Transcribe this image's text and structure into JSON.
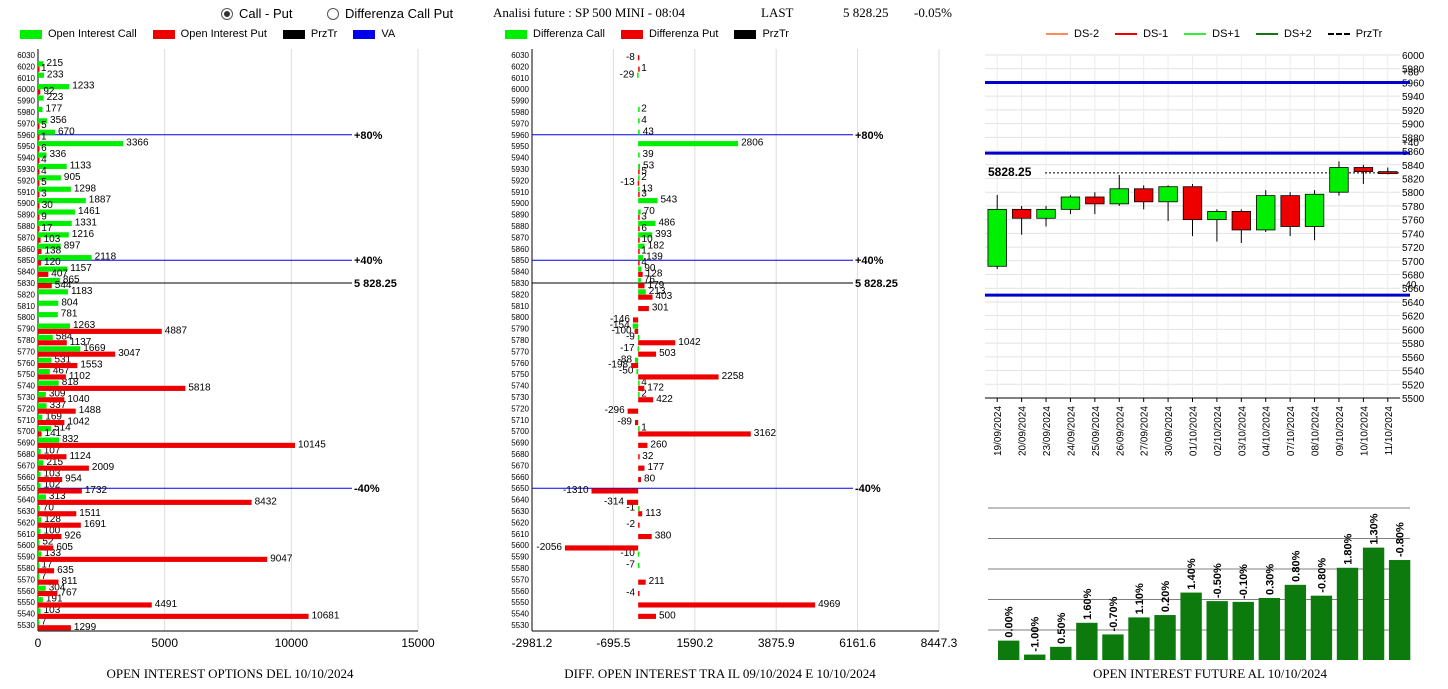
{
  "header": {
    "radio_call_put": "Call - Put",
    "radio_diff": "Differenza Call Put",
    "analysis": "Analisi future : SP 500 MINI - 08:04",
    "last_label": "LAST",
    "last_value": "5 828.25",
    "change": "-0.05%"
  },
  "legend1": [
    {
      "label": "Open Interest Call",
      "color": "#00ee00"
    },
    {
      "label": "Open Interest Put",
      "color": "#ee0000"
    },
    {
      "label": "PrzTr",
      "color": "#000000"
    },
    {
      "label": "VA",
      "color": "#0000ee"
    }
  ],
  "legend2": [
    {
      "label": "Differenza Call",
      "color": "#00ee00"
    },
    {
      "label": "Differenza Put",
      "color": "#ee0000"
    },
    {
      "label": "PrzTr",
      "color": "#000000"
    }
  ],
  "legend3": [
    {
      "label": "DS-2",
      "color": "#ff8c5a",
      "style": "solid"
    },
    {
      "label": "DS-1",
      "color": "#ee0000",
      "style": "solid"
    },
    {
      "label": "DS+1",
      "color": "#33ee33",
      "style": "solid"
    },
    {
      "label": "DS+2",
      "color": "#117711",
      "style": "solid"
    },
    {
      "label": "PrzTr",
      "color": "#000000",
      "style": "dashed"
    }
  ],
  "titles": {
    "panel1": "OPEN INTEREST OPTIONS DEL 10/10/2024",
    "panel2": "DIFF. OPEN INTEREST TRA IL 09/10/2024 E 10/10/2024",
    "panel4": "OPEN INTEREST FUTURE AL 10/10/2024"
  },
  "chart_data": [
    {
      "type": "bar",
      "orientation": "horizontal",
      "ylabel": "",
      "xlabel": "",
      "xlim": [
        0,
        15000
      ],
      "xticks": [
        "0",
        "5000",
        "10000",
        "15000"
      ],
      "strikes": [
        6030,
        6020,
        6010,
        6000,
        5990,
        5980,
        5970,
        5960,
        5950,
        5940,
        5930,
        5920,
        5910,
        5900,
        5890,
        5880,
        5870,
        5860,
        5850,
        5840,
        5830,
        5820,
        5810,
        5800,
        5790,
        5780,
        5770,
        5760,
        5750,
        5740,
        5730,
        5720,
        5710,
        5700,
        5690,
        5680,
        5670,
        5660,
        5650,
        5640,
        5630,
        5620,
        5610,
        5600,
        5590,
        5580,
        5570,
        5560,
        5550,
        5540,
        5530
      ],
      "series": [
        {
          "name": "Open Interest Call",
          "color": "#00ee00",
          "values": [
            null,
            215,
            233,
            1233,
            223,
            177,
            356,
            670,
            3366,
            336,
            1133,
            905,
            1298,
            1887,
            1461,
            1331,
            1216,
            897,
            2118,
            1157,
            865,
            1183,
            804,
            781,
            1263,
            584,
            1669,
            531,
            467,
            818,
            309,
            337,
            169,
            514,
            832,
            107,
            215,
            103,
            102,
            313,
            70,
            128,
            100,
            52,
            133,
            17,
            7,
            304,
            191,
            103,
            7
          ],
          "labels": [
            "",
            "215",
            "233",
            "1233",
            "223",
            "177",
            "356",
            "670",
            "3366",
            "336",
            "1133",
            "905",
            "1298",
            "1887",
            "1461",
            "1331",
            "1216",
            "897",
            "2118",
            "1157",
            "865",
            "1183",
            "804",
            "781",
            "1263",
            "584",
            "1669",
            "531",
            "467",
            "818",
            "309",
            "337",
            "169",
            "514",
            "832",
            "107",
            "215",
            "103",
            "102",
            "313",
            "70",
            "128",
            "100",
            "52",
            "133",
            "17",
            "7",
            "304",
            "191",
            "103",
            "7"
          ]
        },
        {
          "name": "Open Interest Put",
          "color": "#ee0000",
          "values": [
            null,
            1,
            null,
            92,
            null,
            null,
            5,
            1,
            6,
            4,
            4,
            5,
            3,
            30,
            9,
            17,
            103,
            138,
            120,
            407,
            544,
            null,
            null,
            null,
            4887,
            1137,
            3047,
            1553,
            1102,
            5818,
            1040,
            1488,
            1042,
            141,
            10145,
            1124,
            2009,
            954,
            1732,
            8432,
            1511,
            1691,
            926,
            605,
            9047,
            635,
            811,
            767,
            4491,
            10681,
            1299
          ],
          "labels": [
            "",
            "1",
            "",
            "92",
            "",
            "",
            "5",
            "1",
            "6",
            "4",
            "4",
            "5",
            "3",
            "30",
            "9",
            "17",
            "103",
            "138",
            "120",
            "407",
            "544",
            "",
            "",
            "",
            "4887",
            "1137",
            "3047",
            "1553",
            "1102",
            "5818",
            "1040",
            "1488",
            "1042",
            "141",
            "10145",
            "1124",
            "2009",
            "954",
            "1732",
            "8432",
            "1511",
            "1691",
            "926",
            "605",
            "9047",
            "635",
            "811",
            "767",
            "4491",
            "10681",
            "1299"
          ]
        }
      ],
      "annotations": [
        {
          "strike": 5960,
          "label": "+80%",
          "color": "#0000ee"
        },
        {
          "strike": 5850,
          "label": "+40%",
          "color": "#0000ee"
        },
        {
          "strike": 5830,
          "label": "5 828.25",
          "color": "#000000"
        },
        {
          "strike": 5650,
          "label": "-40%",
          "color": "#0000ee"
        }
      ]
    },
    {
      "type": "bar",
      "orientation": "horizontal",
      "xlabel": "",
      "xlim": [
        -2981.2,
        8447.3
      ],
      "xticks": [
        "-2981.2",
        "-695.5",
        "1590.2",
        "3875.9",
        "6161.6",
        "8447.3"
      ],
      "strikes": [
        6030,
        6020,
        6010,
        6000,
        5990,
        5980,
        5970,
        5960,
        5950,
        5940,
        5930,
        5920,
        5910,
        5900,
        5890,
        5880,
        5870,
        5860,
        5850,
        5840,
        5830,
        5820,
        5810,
        5800,
        5790,
        5780,
        5770,
        5760,
        5750,
        5740,
        5730,
        5720,
        5710,
        5700,
        5690,
        5680,
        5670,
        5660,
        5650,
        5640,
        5630,
        5620,
        5610,
        5600,
        5590,
        5580,
        5570,
        5560,
        5550,
        5540,
        5530
      ],
      "series": [
        {
          "name": "Differenza Call",
          "color": "#00ee00",
          "values": [
            null,
            null,
            -29,
            null,
            null,
            2,
            4,
            43,
            2806,
            39,
            53,
            2,
            13,
            543,
            70,
            486,
            393,
            182,
            139,
            90,
            76,
            213,
            null,
            null,
            -154,
            -9,
            -17,
            -88,
            -50,
            4,
            2,
            null,
            null,
            1,
            null,
            null,
            null,
            null,
            null,
            null,
            -1,
            null,
            null,
            null,
            -10,
            -7,
            null,
            null,
            null,
            null,
            null
          ],
          "labels": [
            "",
            "",
            "-29",
            "",
            "",
            "2",
            "4",
            "43",
            "2806",
            "39",
            "53",
            "2",
            "13",
            "543",
            "70",
            "486",
            "393",
            "182",
            "139",
            "90",
            "76",
            "213",
            "",
            "",
            "-154",
            "-9",
            "-17",
            "-88",
            "-50",
            "4",
            "2",
            "",
            "",
            "1",
            "",
            "",
            "",
            "",
            "",
            "",
            "-1",
            "",
            "",
            "",
            "-10",
            "-7",
            "",
            "",
            "",
            "",
            ""
          ]
        },
        {
          "name": "Differenza Put",
          "color": "#ee0000",
          "values": [
            -8,
            1,
            null,
            null,
            null,
            null,
            null,
            null,
            null,
            null,
            5,
            -13,
            3,
            null,
            3,
            6,
            10,
            1,
            4,
            128,
            179,
            403,
            301,
            -146,
            -100,
            1042,
            503,
            -198,
            2258,
            172,
            422,
            -296,
            -89,
            3162,
            260,
            32,
            177,
            80,
            -1310,
            -314,
            113,
            -2,
            380,
            -2056,
            null,
            null,
            211,
            -4,
            4969,
            500,
            null
          ],
          "labels": [
            "-8",
            "1",
            "",
            "",
            "",
            "",
            "",
            "",
            "",
            "",
            "5",
            "-13",
            "3",
            "",
            "3",
            "6",
            "10",
            "1",
            "4",
            "128",
            "179",
            "403",
            "301",
            "-146",
            "-100",
            "1042",
            "503",
            "-198",
            "2258",
            "172",
            "422",
            "-296",
            "-89",
            "3162",
            "260",
            "32",
            "177",
            "80",
            "-1310",
            "-314",
            "113",
            "-2",
            "380",
            "-2056",
            "",
            "",
            "211",
            "-4",
            "4969",
            "500",
            ""
          ]
        }
      ],
      "annotations": [
        {
          "strike": 5960,
          "label": "+80%",
          "color": "#0000ee"
        },
        {
          "strike": 5850,
          "label": "+40%",
          "color": "#0000ee"
        },
        {
          "strike": 5830,
          "label": "5 828.25",
          "color": "#000000"
        },
        {
          "strike": 5650,
          "label": "-40%",
          "color": "#0000ee"
        }
      ]
    },
    {
      "type": "candlestick",
      "ylim": [
        5500,
        6000
      ],
      "yticks": [
        "6000",
        "5980",
        "5960",
        "5940",
        "5920",
        "5900",
        "5880",
        "5860",
        "5840",
        "5820",
        "5800",
        "5780",
        "5760",
        "5740",
        "5720",
        "5700",
        "5680",
        "5660",
        "5640",
        "5620",
        "5600",
        "5580",
        "5560",
        "5540",
        "5520",
        "5500"
      ],
      "dates": [
        "19/09/2024",
        "20/09/2024",
        "23/09/2024",
        "24/09/2024",
        "25/09/2024",
        "26/09/2024",
        "27/09/2024",
        "30/09/2024",
        "01/10/2024",
        "02/10/2024",
        "03/10/2024",
        "04/10/2024",
        "07/10/2024",
        "08/10/2024",
        "09/10/2024",
        "10/10/2024",
        "11/10/2024"
      ],
      "candles": [
        {
          "open": 5692,
          "high": 5796,
          "low": 5688,
          "close": 5775
        },
        {
          "open": 5775,
          "high": 5780,
          "low": 5738,
          "close": 5762
        },
        {
          "open": 5762,
          "high": 5780,
          "low": 5750,
          "close": 5775
        },
        {
          "open": 5775,
          "high": 5796,
          "low": 5768,
          "close": 5793
        },
        {
          "open": 5793,
          "high": 5800,
          "low": 5768,
          "close": 5783
        },
        {
          "open": 5783,
          "high": 5825,
          "low": 5780,
          "close": 5805
        },
        {
          "open": 5805,
          "high": 5810,
          "low": 5775,
          "close": 5786
        },
        {
          "open": 5786,
          "high": 5810,
          "low": 5758,
          "close": 5808
        },
        {
          "open": 5808,
          "high": 5812,
          "low": 5736,
          "close": 5760
        },
        {
          "open": 5760,
          "high": 5775,
          "low": 5728,
          "close": 5772
        },
        {
          "open": 5772,
          "high": 5775,
          "low": 5726,
          "close": 5745
        },
        {
          "open": 5745,
          "high": 5803,
          "low": 5742,
          "close": 5795
        },
        {
          "open": 5795,
          "high": 5800,
          "low": 5736,
          "close": 5750
        },
        {
          "open": 5750,
          "high": 5803,
          "low": 5730,
          "close": 5797
        },
        {
          "open": 5800,
          "high": 5845,
          "low": 5795,
          "close": 5836
        },
        {
          "open": 5836,
          "high": 5840,
          "low": 5812,
          "close": 5830
        },
        {
          "open": 5830,
          "high": 5836,
          "low": 5826,
          "close": 5828
        }
      ],
      "last_price": 5828.25,
      "last_label": "5828.25",
      "levels": [
        {
          "value": 5960,
          "label": "+80",
          "color": "#0000cc"
        },
        {
          "value": 5857,
          "label": "+40",
          "color": "#0000cc"
        },
        {
          "value": 5650,
          "label": "-40",
          "color": "#0000cc"
        }
      ],
      "grid": true
    },
    {
      "type": "bar",
      "categories": [
        "19/09/2024",
        "20/09/2024",
        "23/09/2024",
        "24/09/2024",
        "25/09/2024",
        "26/09/2024",
        "27/09/2024",
        "30/09/2024",
        "01/10/2024",
        "02/10/2024",
        "03/10/2024",
        "04/10/2024",
        "07/10/2024",
        "08/10/2024",
        "09/10/2024",
        "10/10/2024"
      ],
      "values": [
        0.0,
        -1.0,
        0.5,
        1.6,
        -0.7,
        1.1,
        0.2,
        1.4,
        -0.5,
        -0.1,
        0.3,
        0.8,
        -0.8,
        1.8,
        1.3,
        -0.8
      ],
      "labels": [
        "0.00%",
        "-1.00%",
        "0.50%",
        "1.60%",
        "-0.70%",
        "1.10%",
        "0.20%",
        "1.40%",
        "-0.50%",
        "-0.10%",
        "0.30%",
        "0.80%",
        "-0.80%",
        "1.80%",
        "1.30%",
        "-0.80%"
      ],
      "relative_height": [
        0.25,
        0.07,
        0.17,
        0.48,
        0.33,
        0.55,
        0.58,
        0.87,
        0.76,
        0.75,
        0.8,
        0.97,
        0.83,
        1.19,
        1.45,
        1.29
      ],
      "color": "#0c7a0c",
      "grid": true
    }
  ]
}
